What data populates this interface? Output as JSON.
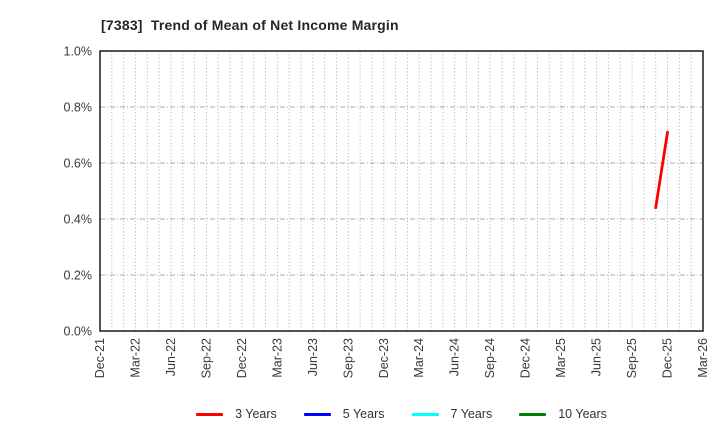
{
  "chart_data": {
    "type": "line",
    "title": "[7383]  Trend of Mean of Net Income Margin",
    "x_tick_labels": [
      "Dec-21",
      "Mar-22",
      "Jun-22",
      "Sep-22",
      "Dec-22",
      "Mar-23",
      "Jun-23",
      "Sep-23",
      "Dec-23",
      "Mar-24",
      "Jun-24",
      "Sep-24",
      "Dec-24",
      "Mar-25",
      "Jun-25",
      "Sep-25",
      "Dec-25",
      "Mar-26"
    ],
    "x_axis_start": "Dec-21",
    "x_axis_end": "Mar-26",
    "y_tick_labels": [
      "0.0%",
      "0.2%",
      "0.4%",
      "0.6%",
      "0.8%",
      "1.0%"
    ],
    "ylim": [
      0.0,
      1.0
    ],
    "y_unit": "%",
    "grid": true,
    "legend_position": "bottom",
    "series": [
      {
        "name": "3 Years",
        "color": "#ff0000",
        "points": [
          {
            "month": "Nov-25",
            "value": 0.44
          },
          {
            "month": "Dec-25",
            "value": 0.71
          }
        ]
      },
      {
        "name": "5 Years",
        "color": "#0000ff",
        "points": []
      },
      {
        "name": "7 Years",
        "color": "#00ffff",
        "points": []
      },
      {
        "name": "10 Years",
        "color": "#008000",
        "points": []
      }
    ],
    "colors": {
      "frame": "#1a1a1a",
      "gridline": "#ababab",
      "tick_label": "#3a3a3a",
      "title": "#262626"
    }
  }
}
